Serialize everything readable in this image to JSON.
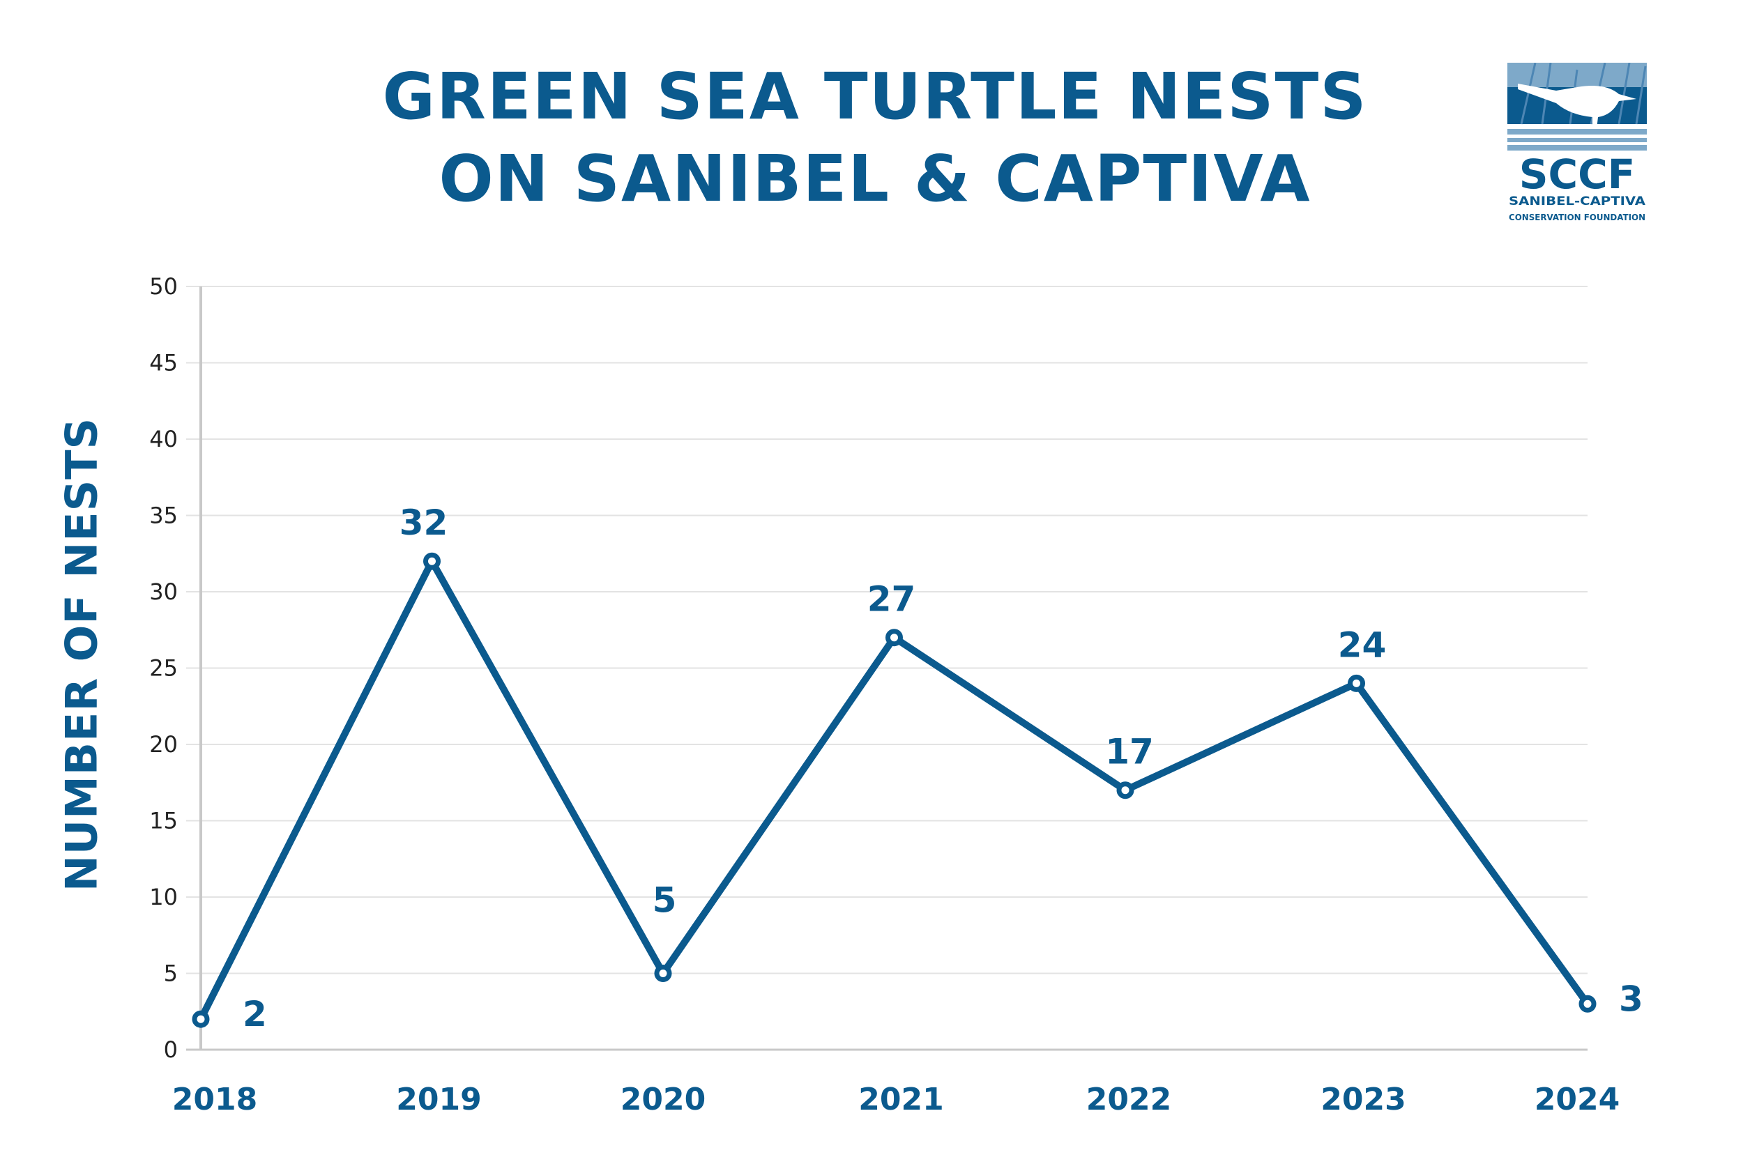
{
  "chart_data": {
    "type": "line",
    "title": [
      "GREEN SEA TURTLE NESTS",
      "ON SANIBEL & CAPTIVA"
    ],
    "xlabel": "",
    "ylabel": "NUMBER OF NESTS",
    "categories": [
      "2018",
      "2019",
      "2020",
      "2021",
      "2022",
      "2023",
      "2024"
    ],
    "values": [
      2,
      32,
      5,
      27,
      17,
      24,
      3
    ],
    "data_labels": [
      "2",
      "32",
      "5",
      "27",
      "17",
      "24",
      "3"
    ],
    "ylim": [
      0,
      50
    ],
    "yticks": [
      "0",
      "5",
      "10",
      "15",
      "20",
      "25",
      "30",
      "35",
      "40",
      "45",
      "50"
    ],
    "grid": true,
    "legend": "none",
    "colors": {
      "series": "#0b5a8e",
      "grid": "#e3e3e3",
      "axis": "#c8c8c8",
      "tick_text": "#222222"
    }
  },
  "logo": {
    "name": "SCCF",
    "line1": "SANIBEL-CAPTIVA",
    "line2": "CONSERVATION FOUNDATION",
    "icon": "bird-in-grass-logo"
  }
}
